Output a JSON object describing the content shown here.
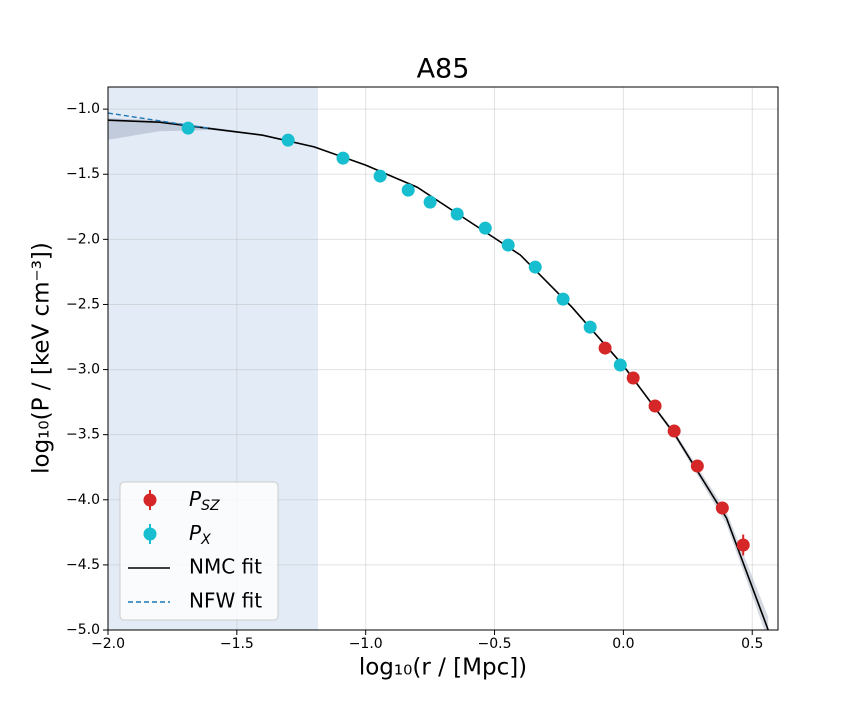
{
  "chart_data": {
    "type": "scatter",
    "title": "A85",
    "x_label": "log₁₀(r / [Mpc])",
    "y_label": "log₁₀(P / [keV cm⁻³])",
    "xlim": [
      -2.0,
      0.6
    ],
    "ylim": [
      -5.0,
      -0.83
    ],
    "xticks": [
      {
        "value": -2.0,
        "label": "−2.0"
      },
      {
        "value": -1.5,
        "label": "−1.5"
      },
      {
        "value": -1.0,
        "label": "−1.0"
      },
      {
        "value": -0.5,
        "label": "−0.5"
      },
      {
        "value": 0.0,
        "label": "0.0"
      },
      {
        "value": 0.5,
        "label": "0.5"
      }
    ],
    "yticks": [
      {
        "value": -1.0,
        "label": "−1.0"
      },
      {
        "value": -1.5,
        "label": "−1.5"
      },
      {
        "value": -2.0,
        "label": "−2.0"
      },
      {
        "value": -2.5,
        "label": "−2.5"
      },
      {
        "value": -3.0,
        "label": "−3.0"
      },
      {
        "value": -3.5,
        "label": "−3.5"
      },
      {
        "value": -4.0,
        "label": "−4.0"
      },
      {
        "value": -4.5,
        "label": "−4.5"
      },
      {
        "value": -5.0,
        "label": "−5.0"
      }
    ],
    "grid": true,
    "legend": "lower left",
    "shaded_region": [
      -2.0,
      -1.185
    ],
    "series": [
      {
        "name": "P_SZ",
        "kind": "points",
        "color": "#d62728",
        "x": [
          -0.071,
          0.038,
          0.123,
          0.197,
          0.287,
          0.384,
          0.465
        ],
        "values": [
          -2.835,
          -3.065,
          -3.28,
          -3.472,
          -3.741,
          -4.063,
          -4.347
        ],
        "errors": [
          0.02,
          0.02,
          0.02,
          0.02,
          0.03,
          0.05,
          0.08
        ]
      },
      {
        "name": "P_X",
        "kind": "points",
        "color": "#17becf",
        "x": [
          -1.689,
          -1.301,
          -1.088,
          -0.944,
          -0.835,
          -0.75,
          -0.645,
          -0.536,
          -0.447,
          -0.342,
          -0.234,
          -0.129,
          -0.012
        ],
        "values": [
          -1.146,
          -1.238,
          -1.376,
          -1.514,
          -1.622,
          -1.714,
          -1.806,
          -1.914,
          -2.044,
          -2.213,
          -2.459,
          -2.674,
          -2.965
        ],
        "errors": [
          0.01,
          0.01,
          0.01,
          0.01,
          0.01,
          0.01,
          0.01,
          0.01,
          0.01,
          0.01,
          0.01,
          0.01,
          0.01
        ]
      },
      {
        "name": "NMC fit",
        "kind": "line",
        "color": "#000000",
        "x": [
          -2.0,
          -1.8,
          -1.6,
          -1.4,
          -1.2,
          -1.0,
          -0.8,
          -0.6,
          -0.4,
          -0.2,
          0.0,
          0.2,
          0.4,
          0.562
        ],
        "values": [
          -1.085,
          -1.1,
          -1.15,
          -1.2,
          -1.29,
          -1.43,
          -1.6,
          -1.86,
          -2.12,
          -2.52,
          -2.97,
          -3.5,
          -4.14,
          -5.0
        ],
        "lower": [
          -1.235,
          -1.17,
          -1.16,
          -1.205,
          -1.295,
          -1.435,
          -1.605,
          -1.865,
          -2.125,
          -2.525,
          -2.975,
          -3.52,
          -4.19,
          -5.08
        ],
        "upper": [
          -1.07,
          -1.085,
          -1.14,
          -1.195,
          -1.285,
          -1.425,
          -1.595,
          -1.855,
          -2.115,
          -2.515,
          -2.965,
          -3.48,
          -4.09,
          -4.9
        ]
      },
      {
        "name": "NFW fit",
        "kind": "dashed",
        "color": "#1f77b4",
        "x": [
          -2.0,
          -1.9,
          -1.8,
          -1.7,
          -1.6
        ],
        "values": [
          -1.03,
          -1.06,
          -1.09,
          -1.12,
          -1.15
        ]
      }
    ]
  }
}
